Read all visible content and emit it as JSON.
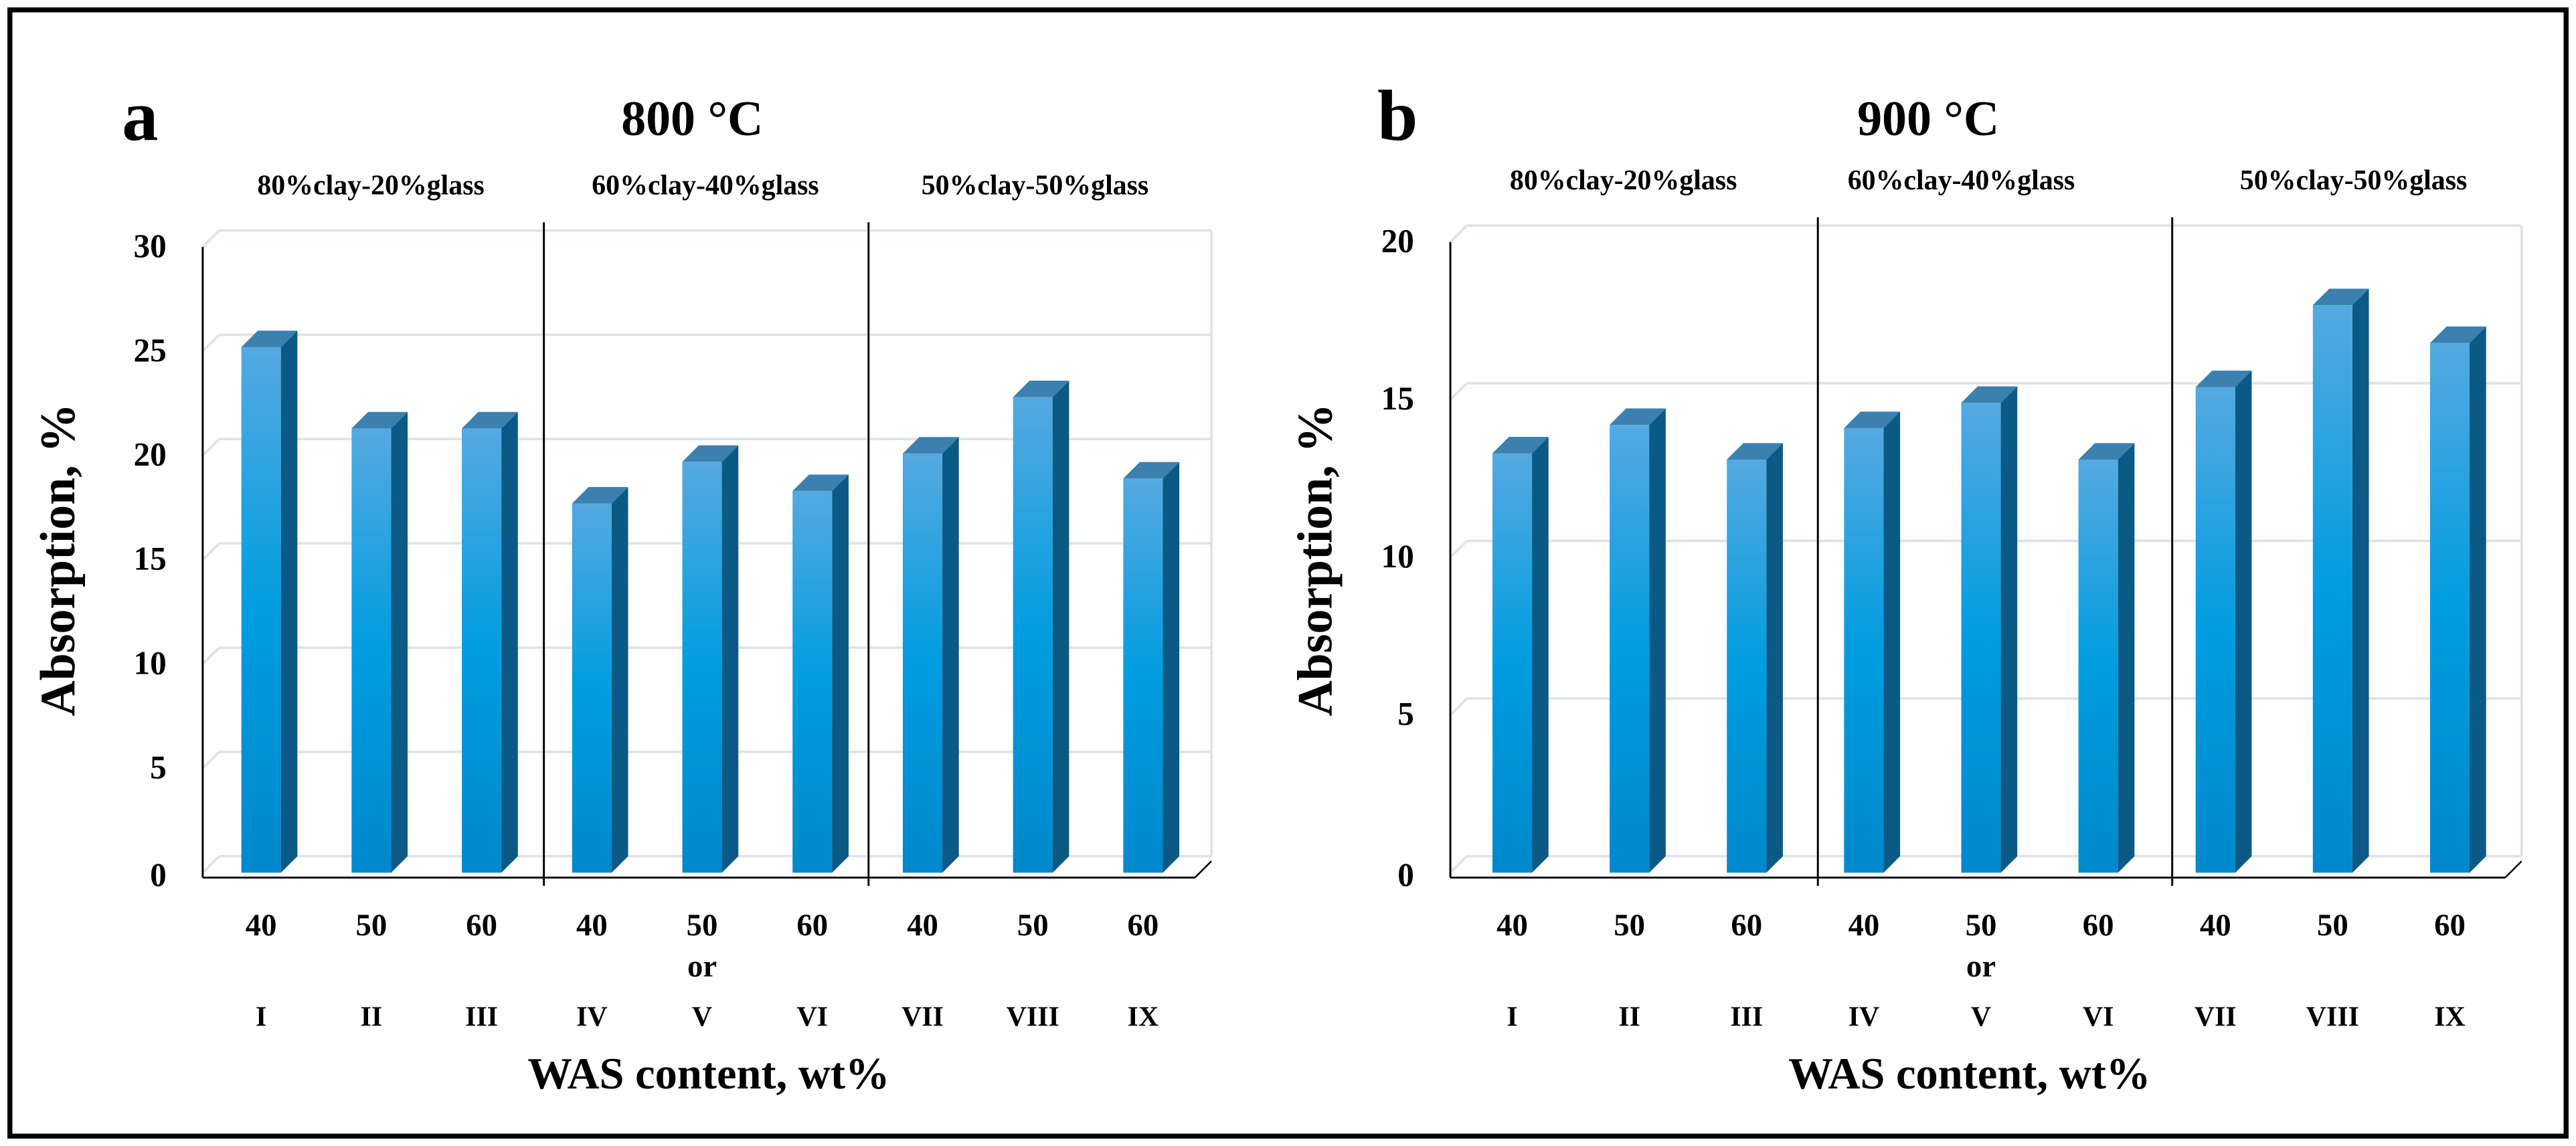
{
  "chart_data": [
    {
      "type": "bar",
      "panel_letter": "a",
      "title": "800 °C",
      "ylabel": "Absorption, %",
      "xlabel": "WAS content, wt%",
      "ylim": [
        0,
        30
      ],
      "yticks": [
        "0",
        "5",
        "10",
        "15",
        "20",
        "25",
        "30"
      ],
      "groups": [
        "80%clay-20%glass",
        "60%clay-40%glass",
        "50%clay-50%glass"
      ],
      "categories": [
        "40",
        "50",
        "60",
        "40",
        "50",
        "60",
        "40",
        "50",
        "60"
      ],
      "sample_ids": [
        "I",
        "II",
        "III",
        "IV",
        "V",
        "VI",
        "VII",
        "VIII",
        "IX"
      ],
      "or_label": "or",
      "values": [
        25.2,
        21.3,
        21.3,
        17.7,
        19.7,
        18.3,
        20.1,
        22.8,
        18.9
      ],
      "grid": true,
      "bar_color": "#0899d9"
    },
    {
      "type": "bar",
      "panel_letter": "b",
      "title": "900 °C",
      "ylabel": "Absorption, %",
      "xlabel": "WAS content, wt%",
      "ylim": [
        0,
        20
      ],
      "yticks": [
        "0",
        "5",
        "10",
        "15",
        "20"
      ],
      "groups": [
        "80%clay-20%glass",
        "60%clay-40%glass",
        "50%clay-50%glass"
      ],
      "categories": [
        "40",
        "50",
        "60",
        "40",
        "50",
        "60",
        "40",
        "50",
        "60"
      ],
      "sample_ids": [
        "I",
        "II",
        "III",
        "IV",
        "V",
        "VI",
        "VII",
        "VIII",
        "IX"
      ],
      "or_label": "or",
      "values": [
        13.3,
        14.2,
        13.1,
        14.1,
        14.9,
        13.1,
        15.4,
        18.0,
        16.8
      ],
      "grid": true,
      "bar_color": "#0899d9"
    }
  ]
}
